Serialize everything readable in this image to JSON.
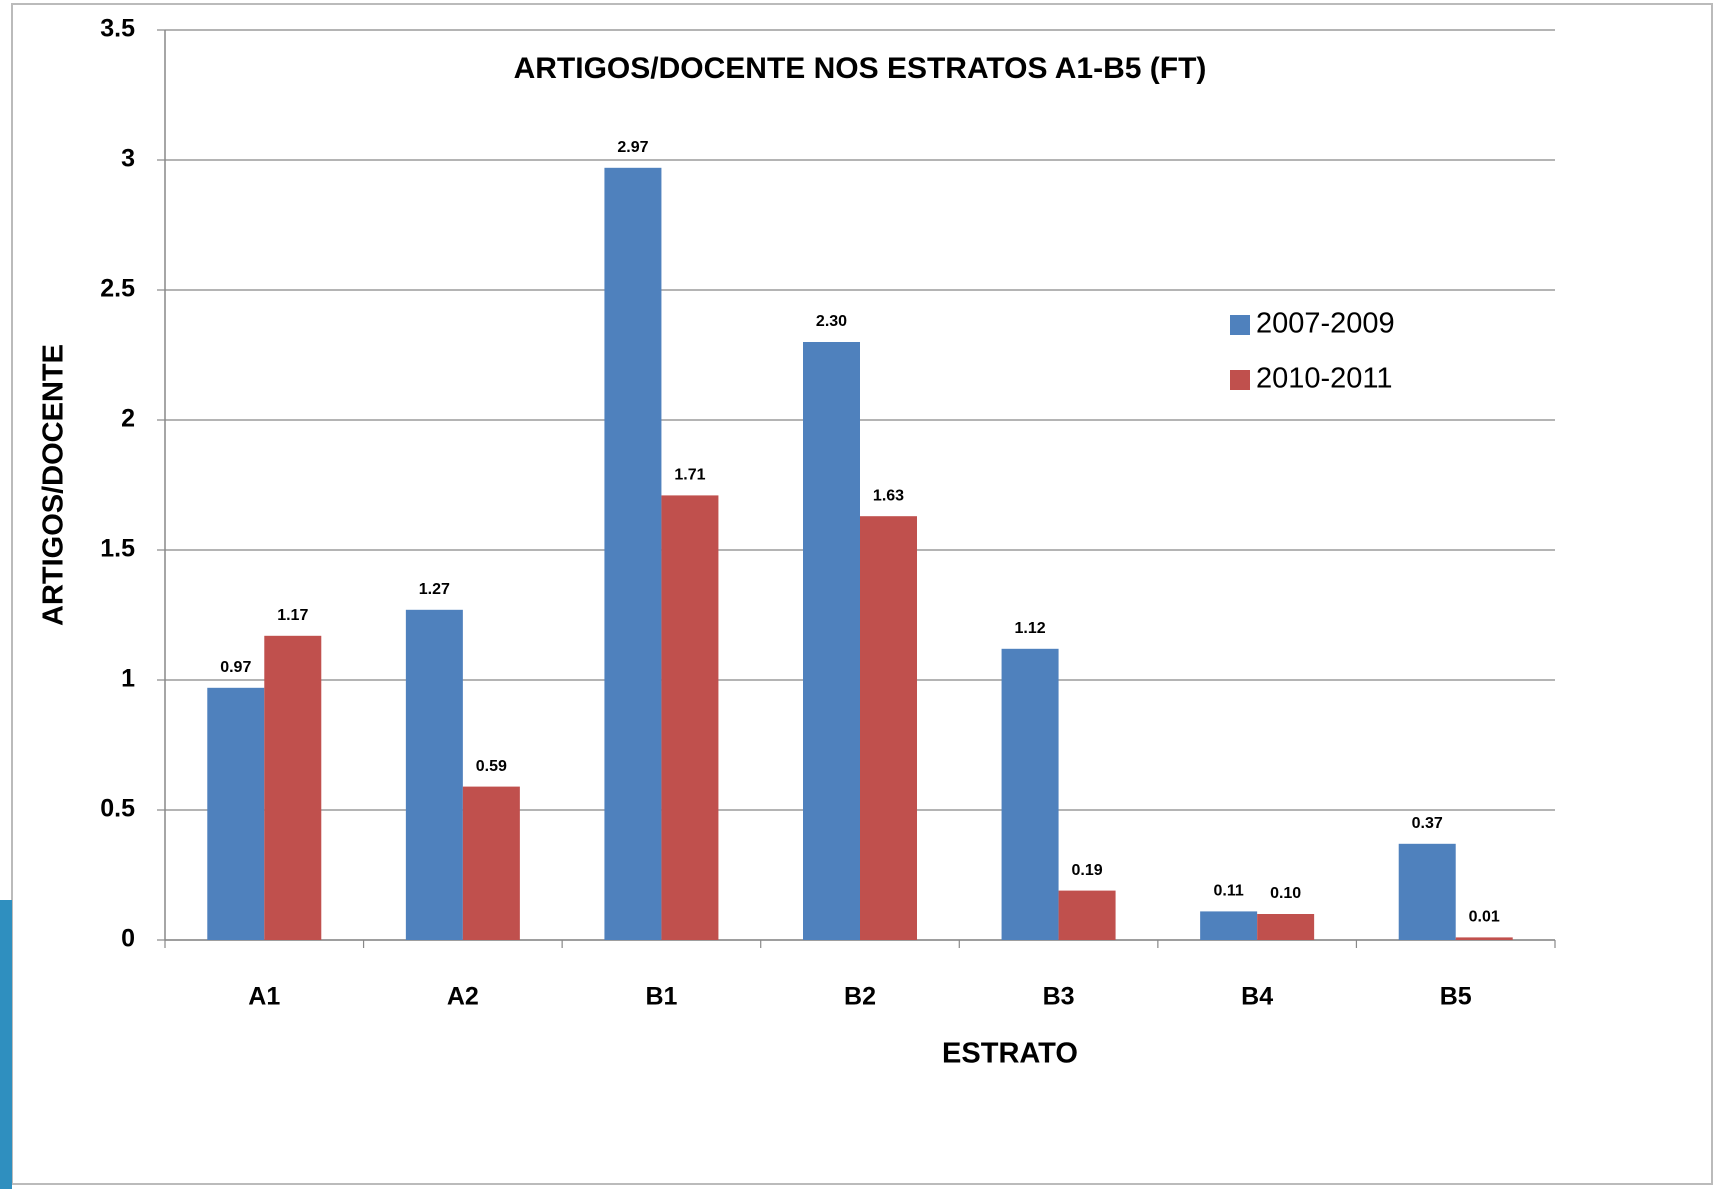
{
  "chart_data": {
    "type": "bar",
    "title": "ARTIGOS/DOCENTE NOS ESTRATOS A1-B5 (FT)",
    "x_label": "ESTRATO",
    "y_label": "ARTIGOS/DOCENTE",
    "categories": [
      "A1",
      "A2",
      "B1",
      "B2",
      "B3",
      "B4",
      "B5"
    ],
    "series": [
      {
        "name": "2007-2009",
        "color": "#4f81bd",
        "values": [
          0.97,
          1.27,
          2.97,
          2.3,
          1.12,
          0.11,
          0.37
        ],
        "value_labels": [
          "0.97",
          "1.27",
          "2.97",
          "2.30",
          "1.12",
          "0.11",
          "0.37"
        ]
      },
      {
        "name": "2010-2011",
        "color": "#c0504d",
        "values": [
          1.17,
          0.59,
          1.71,
          1.63,
          0.19,
          0.1,
          0.01
        ],
        "value_labels": [
          "1.17",
          "0.59",
          "1.71",
          "1.63",
          "0.19",
          "0.10",
          "0.01"
        ]
      }
    ],
    "ylim": [
      0,
      3.5
    ],
    "yticks": [
      0,
      0.5,
      1,
      1.5,
      2,
      2.5,
      3,
      3.5
    ],
    "grid": true,
    "legend": "right"
  }
}
